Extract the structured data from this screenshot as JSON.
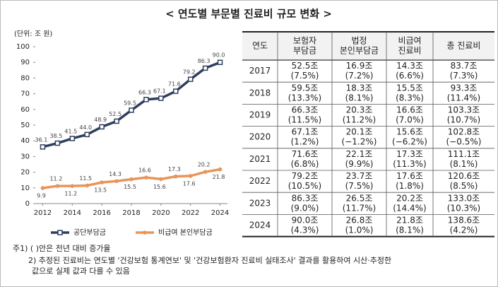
{
  "title": "< 연도별 부문별 진료비 규모 변화 >",
  "chart_data": {
    "type": "line",
    "ylabel": "(단위: 조 원)",
    "x": [
      2012,
      2013,
      2014,
      2015,
      2016,
      2017,
      2018,
      2019,
      2020,
      2021,
      2022,
      2023,
      2024
    ],
    "xlim": [
      2011.5,
      2024.5
    ],
    "xticks": [
      2012,
      2014,
      2016,
      2018,
      2020,
      2022,
      2024
    ],
    "ylim": [
      0,
      100
    ],
    "yticks": [
      0,
      10,
      20,
      30,
      40,
      50,
      60,
      70,
      80,
      90,
      100
    ],
    "legend": "bottom",
    "series": [
      {
        "name": "공단부담금",
        "color": "#2f3e5e",
        "marker": "square",
        "values": [
          36.1,
          38.5,
          41.5,
          44.0,
          48.9,
          52.5,
          59.5,
          66.3,
          67.1,
          71.6,
          79.2,
          86.3,
          90.0
        ],
        "value_labels": [
          "36.1",
          "38.5",
          "41.5",
          "44.0",
          "48.9",
          "52.5",
          "59.5",
          "66.3",
          "67.1",
          "71.6",
          "79.2",
          "86.3",
          "90.0"
        ]
      },
      {
        "name": "비급여 본인부담금",
        "color": "#e8955a",
        "marker": "circle",
        "values": [
          9.9,
          11.2,
          11.2,
          11.5,
          13.5,
          14.3,
          15.5,
          16.6,
          15.6,
          17.3,
          17.6,
          20.2,
          21.8
        ],
        "value_labels": [
          "9.9",
          "11.2",
          "11.2",
          "11.5",
          "13.5",
          "14.3",
          "15.5",
          "16.6",
          "15.6",
          "17.3",
          "17.6",
          "20.2",
          "21.8"
        ]
      }
    ]
  },
  "table": {
    "header": [
      "연도",
      [
        "보험자",
        "부담금"
      ],
      [
        "법정",
        "본인부담금"
      ],
      [
        "비급여",
        "진료비"
      ],
      "총 진료비"
    ],
    "rows": [
      [
        "2017",
        [
          "52.5조",
          "(7.5%)"
        ],
        [
          "16.9조",
          "(7.2%)"
        ],
        [
          "14.3조",
          "(6.6%)"
        ],
        [
          "83.7조",
          "(7.3%)"
        ]
      ],
      [
        "2018",
        [
          "59.5조",
          "(13.3%)"
        ],
        [
          "18.3조",
          "(8.1%)"
        ],
        [
          "15.5조",
          "(8.3%)"
        ],
        [
          "93.3조",
          "(11.4%)"
        ]
      ],
      [
        "2019",
        [
          "66.3조",
          "(11.5%)"
        ],
        [
          "20.3조",
          "(11.2%)"
        ],
        [
          "16.6조",
          "(7.0%)"
        ],
        [
          "103.3조",
          "(10.7%)"
        ]
      ],
      [
        "2020",
        [
          "67.1조",
          "(1.2%)"
        ],
        [
          "20.1조",
          "(−1.2%)"
        ],
        [
          "15.6조",
          "(−6.2%)"
        ],
        [
          "102.8조",
          "(−0.5%)"
        ]
      ],
      [
        "2021",
        [
          "71.6조",
          "(6.8%)"
        ],
        [
          "22.1조",
          "(9.9%)"
        ],
        [
          "17.3조",
          "(11.3%)"
        ],
        [
          "111.1조",
          "(8.1%)"
        ]
      ],
      [
        "2022",
        [
          "79.2조",
          "(10.5%)"
        ],
        [
          "23.7조",
          "(7.5%)"
        ],
        [
          "17.6조",
          "(1.8%)"
        ],
        [
          "120.6조",
          "(8.5%)"
        ]
      ],
      [
        "2023",
        [
          "86.3조",
          "(9.0%)"
        ],
        [
          "26.5조",
          "(11.7%)"
        ],
        [
          "20.2조",
          "(14.4%)"
        ],
        [
          "133.0조",
          "(10.3%)"
        ]
      ],
      [
        "2024",
        [
          "90.0조",
          "(4.3%)"
        ],
        [
          "26.8조",
          "(1.0%)"
        ],
        [
          "21.8조",
          "(8.1%)"
        ],
        [
          "138.6조",
          "(4.2%)"
        ]
      ]
    ]
  },
  "notes": [
    "주1) ( )안은 전년 대비 증가율",
    "2) 추정된 진료비는 연도별 '건강보험 통계연보' 및 '건강보험환자 진료비 실태조사' 결과를 활용하여 시산·추정한",
    "값으로 실제 값과 다를 수 있음"
  ]
}
